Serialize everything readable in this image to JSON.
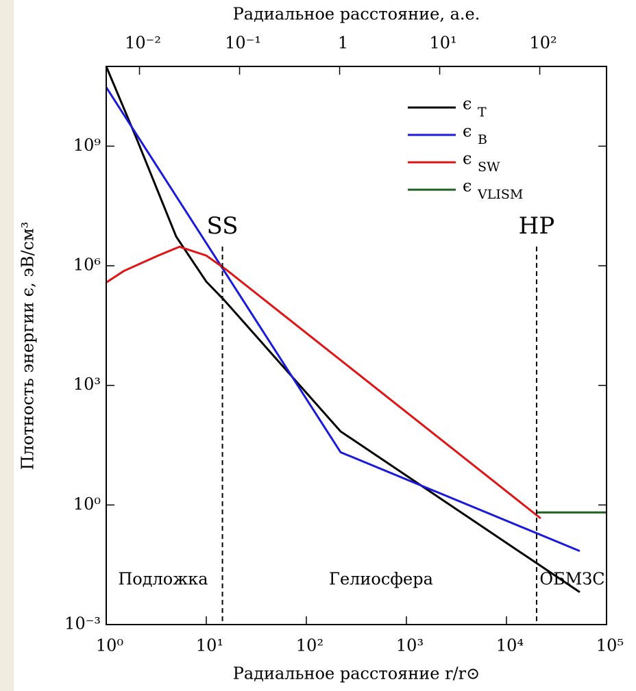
{
  "chart_data": {
    "type": "line",
    "x_label": "Радиальное расстояние r/r⊙",
    "x2_label": "Радиальное расстояние, а.е.",
    "y_label": "Плотность энергии ϵ, эВ/см³",
    "log_x": true,
    "log_y": true,
    "xlim": [
      1,
      100000
    ],
    "xticks": [
      {
        "value": 1,
        "label": "10⁰"
      },
      {
        "value": 10,
        "label": "10¹"
      },
      {
        "value": 100,
        "label": "10²"
      },
      {
        "value": 1000,
        "label": "10³"
      },
      {
        "value": 10000,
        "label": "10⁴"
      },
      {
        "value": 100000,
        "label": "10⁵"
      }
    ],
    "x2lim": [
      0.00465,
      465
    ],
    "x2ticks": [
      {
        "value": 0.01,
        "label": "10⁻²"
      },
      {
        "value": 0.1,
        "label": "10⁻¹"
      },
      1,
      {
        "value": 10,
        "label": "10¹"
      },
      {
        "value": 100,
        "label": "10²"
      }
    ],
    "ylim": [
      0.001,
      100000000000
    ],
    "yticks": [
      {
        "value": 0.001,
        "label": "10⁻³"
      },
      {
        "value": 1,
        "label": "10⁰"
      },
      {
        "value": 1000,
        "label": "10³"
      },
      {
        "value": 1000000,
        "label": "10⁶"
      },
      {
        "value": 1000000000,
        "label": "10⁹"
      }
    ],
    "legend_symbol": "ϵ",
    "legend_position": "upper right",
    "series": [
      {
        "name": "T",
        "color": "#000000",
        "x": [
          1,
          2,
          5,
          10,
          15,
          220,
          54000
        ],
        "values": [
          100000000000,
          1600000000,
          5400000,
          400000,
          140000,
          70,
          0.0065
        ]
      },
      {
        "name": "B",
        "color": "#1a1adc",
        "x": [
          1,
          220,
          54000
        ],
        "values": [
          30000000000,
          21,
          0.07
        ]
      },
      {
        "name": "SW",
        "color": "#e01414",
        "x": [
          1,
          1.5,
          3.3,
          5.4,
          10,
          15.8,
          22000
        ],
        "values": [
          380000,
          740000,
          1800000,
          3000000,
          1800000,
          800000,
          0.46
        ]
      },
      {
        "name": "VLISM",
        "color": "#1f5f1f",
        "x": [
          20000,
          100000
        ],
        "values": [
          0.65,
          0.65
        ]
      }
    ],
    "vlines": [
      {
        "x": 14.5,
        "label": "SS"
      },
      {
        "x": 20000,
        "label": "HP"
      }
    ],
    "regions": [
      "Подложка",
      "Гелиосфера",
      "ОБМЗС"
    ]
  }
}
